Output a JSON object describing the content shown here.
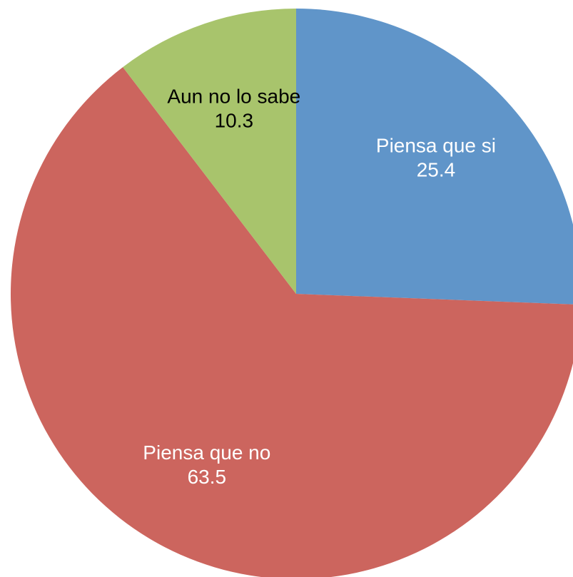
{
  "chart_data": {
    "type": "pie",
    "categories": [
      "Piensa que si",
      "Piensa que no",
      "Aun no lo sabe"
    ],
    "values": [
      25.4,
      63.5,
      10.3
    ],
    "colors": [
      "#6095c9",
      "#cc655e",
      "#a8c46c"
    ],
    "label_colors": [
      "#ffffff",
      "#ffffff",
      "#000000"
    ]
  }
}
